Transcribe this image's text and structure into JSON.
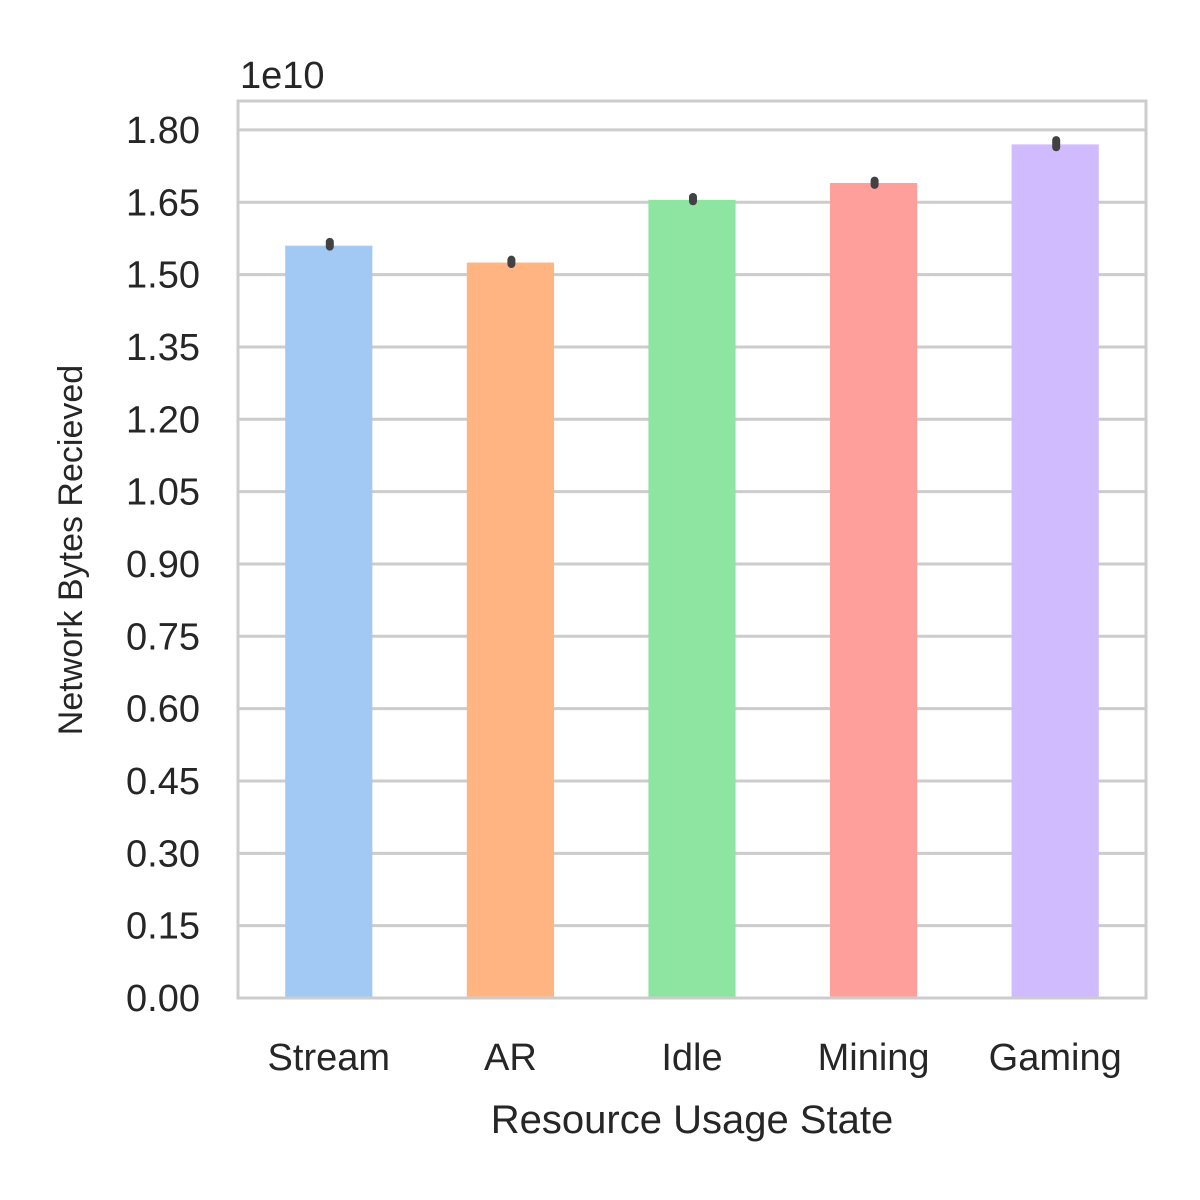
{
  "chart_data": {
    "type": "bar",
    "title": "",
    "xlabel": "Resource Usage State",
    "ylabel": "Network Bytes Recieved",
    "offset_text": "1e10",
    "scale": 10000000000,
    "categories": [
      "Stream",
      "AR",
      "Idle",
      "Mining",
      "Gaming"
    ],
    "values": [
      15600000000,
      15250000000,
      16550000000,
      16900000000,
      17700000000
    ],
    "error_bars": [
      [
        15580000000,
        15680000000
      ],
      [
        15220000000,
        15310000000
      ],
      [
        16520000000,
        16610000000
      ],
      [
        16860000000,
        16950000000
      ],
      [
        17640000000,
        17790000000
      ]
    ],
    "colors": [
      "#a1c9f4",
      "#ffb482",
      "#8de5a1",
      "#ff9f9b",
      "#d0bbff"
    ],
    "ylim": [
      0,
      18600000000
    ],
    "yticks": [
      0,
      0.15,
      0.3,
      0.45,
      0.6,
      0.75,
      0.9,
      1.05,
      1.2,
      1.35,
      1.5,
      1.65,
      1.8
    ],
    "ytick_labels": [
      "0.00",
      "0.15",
      "0.30",
      "0.45",
      "0.60",
      "0.75",
      "0.90",
      "1.05",
      "1.20",
      "1.35",
      "1.50",
      "1.65",
      "1.80"
    ],
    "grid": true,
    "legend": "none"
  }
}
